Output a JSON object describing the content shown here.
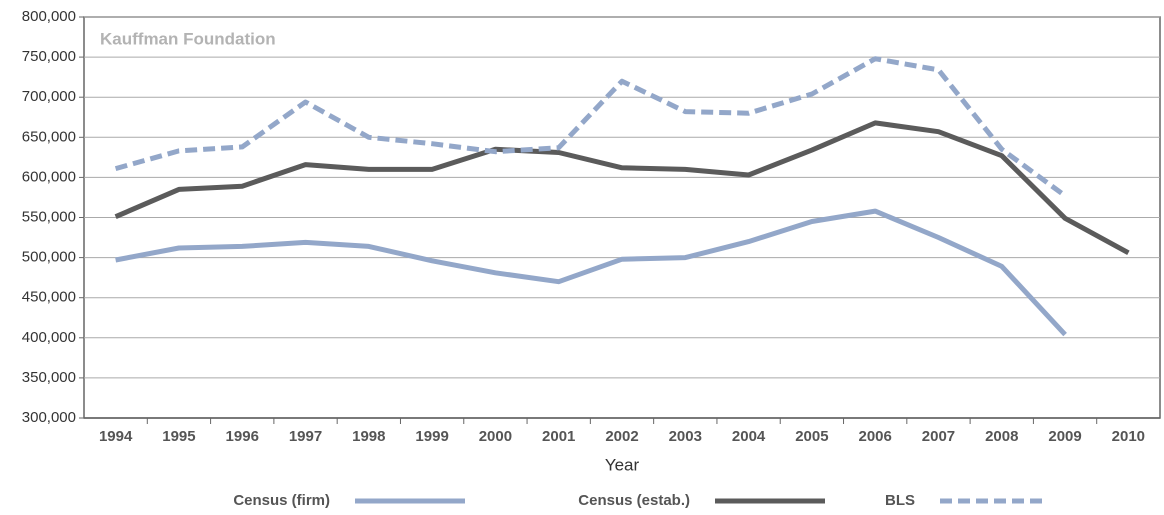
{
  "chart_data": {
    "type": "line",
    "annotation": "Kauffman Foundation",
    "x_label": "Year",
    "categories": [
      "1994",
      "1995",
      "1996",
      "1997",
      "1998",
      "1999",
      "2000",
      "2001",
      "2002",
      "2003",
      "2004",
      "2005",
      "2006",
      "2007",
      "2008",
      "2009",
      "2010"
    ],
    "series": [
      {
        "name": "Census (firm)",
        "color": "#93a7c9",
        "style": "solid",
        "values": [
          497000,
          512000,
          514000,
          519000,
          514000,
          496000,
          481000,
          470000,
          498000,
          500000,
          520000,
          545000,
          558000,
          525000,
          489000,
          404000,
          null
        ]
      },
      {
        "name": "Census (estab.)",
        "color": "#5b5b5b",
        "style": "solid",
        "values": [
          551000,
          585000,
          589000,
          616000,
          610000,
          610000,
          635000,
          631000,
          612000,
          610000,
          603000,
          634000,
          668000,
          657000,
          627000,
          549000,
          506000
        ]
      },
      {
        "name": "BLS",
        "color": "#93a7c9",
        "style": "dashed",
        "values": [
          611000,
          633000,
          638000,
          694000,
          650000,
          642000,
          632000,
          637000,
          720000,
          682000,
          680000,
          704000,
          748000,
          734000,
          635000,
          577000,
          null
        ]
      }
    ],
    "ylim": [
      300000,
      800000
    ],
    "yticks": [
      {
        "value": 300000,
        "label": "300,000"
      },
      {
        "value": 350000,
        "label": "350,000"
      },
      {
        "value": 400000,
        "label": "400,000"
      },
      {
        "value": 450000,
        "label": "450,000"
      },
      {
        "value": 500000,
        "label": "500,000"
      },
      {
        "value": 550000,
        "label": "550,000"
      },
      {
        "value": 600000,
        "label": "600,000"
      },
      {
        "value": 650000,
        "label": "650,000"
      },
      {
        "value": 700000,
        "label": "700,000"
      },
      {
        "value": 750000,
        "label": "750,000"
      },
      {
        "value": 800000,
        "label": "800,000"
      }
    ],
    "grid": true,
    "legend": "bottom"
  }
}
